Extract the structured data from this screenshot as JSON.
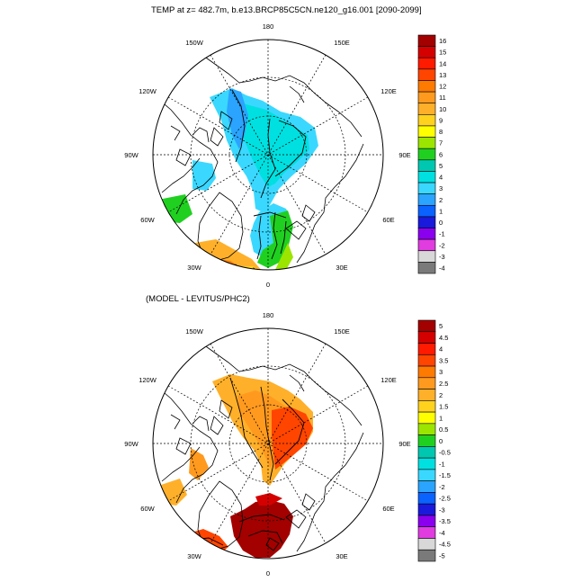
{
  "panels": [
    {
      "title": "TEMP at z= 482.7m, b.e13.BRCP85C5CN.ne120_g16.001 [2090-2099]",
      "longitude_labels": [
        "180",
        "150W",
        "150E",
        "120W",
        "120E",
        "90W",
        "90E",
        "60W",
        "60E",
        "30W",
        "30E",
        "0"
      ],
      "colorbar": {
        "labels": [
          "16",
          "15",
          "14",
          "13",
          "12",
          "11",
          "10",
          "9",
          "8",
          "7",
          "6",
          "5",
          "4",
          "3",
          "2",
          "1",
          "0",
          "-1",
          "-2",
          "-3",
          "-4"
        ],
        "colors": [
          "#a30000",
          "#d40000",
          "#ff1a00",
          "#ff4500",
          "#ff7a00",
          "#ff9a1f",
          "#ffb02a",
          "#ffd21e",
          "#ffff00",
          "#9be500",
          "#20d020",
          "#00c8b0",
          "#00e0e0",
          "#3ad8ff",
          "#2aa4ff",
          "#0a62ff",
          "#1a1adc",
          "#8a00ee",
          "#e03ce0",
          "#d8d8d8",
          "#7a7a7a"
        ]
      }
    },
    {
      "title": "(MODEL - LEVITUS/PHC2)",
      "longitude_labels": [
        "180",
        "150W",
        "150E",
        "120W",
        "120E",
        "90W",
        "90E",
        "60W",
        "60E",
        "30W",
        "30E",
        "0"
      ],
      "colorbar": {
        "labels": [
          "5",
          "4.5",
          "4",
          "3.5",
          "3",
          "2.5",
          "2",
          "1.5",
          "1",
          "0.5",
          "0",
          "-0.5",
          "-1",
          "-1.5",
          "-2",
          "-2.5",
          "-3",
          "-3.5",
          "-4",
          "-4.5",
          "-5"
        ],
        "colors": [
          "#a30000",
          "#d40000",
          "#ff1a00",
          "#ff4500",
          "#ff7a00",
          "#ff9a1f",
          "#ffb02a",
          "#ffd21e",
          "#ffff00",
          "#9be500",
          "#20d020",
          "#00c8b0",
          "#00e0e0",
          "#3ad8ff",
          "#2aa4ff",
          "#0a62ff",
          "#1a1adc",
          "#8a00ee",
          "#e03ce0",
          "#d8d8d8",
          "#7a7a7a"
        ]
      }
    }
  ]
}
